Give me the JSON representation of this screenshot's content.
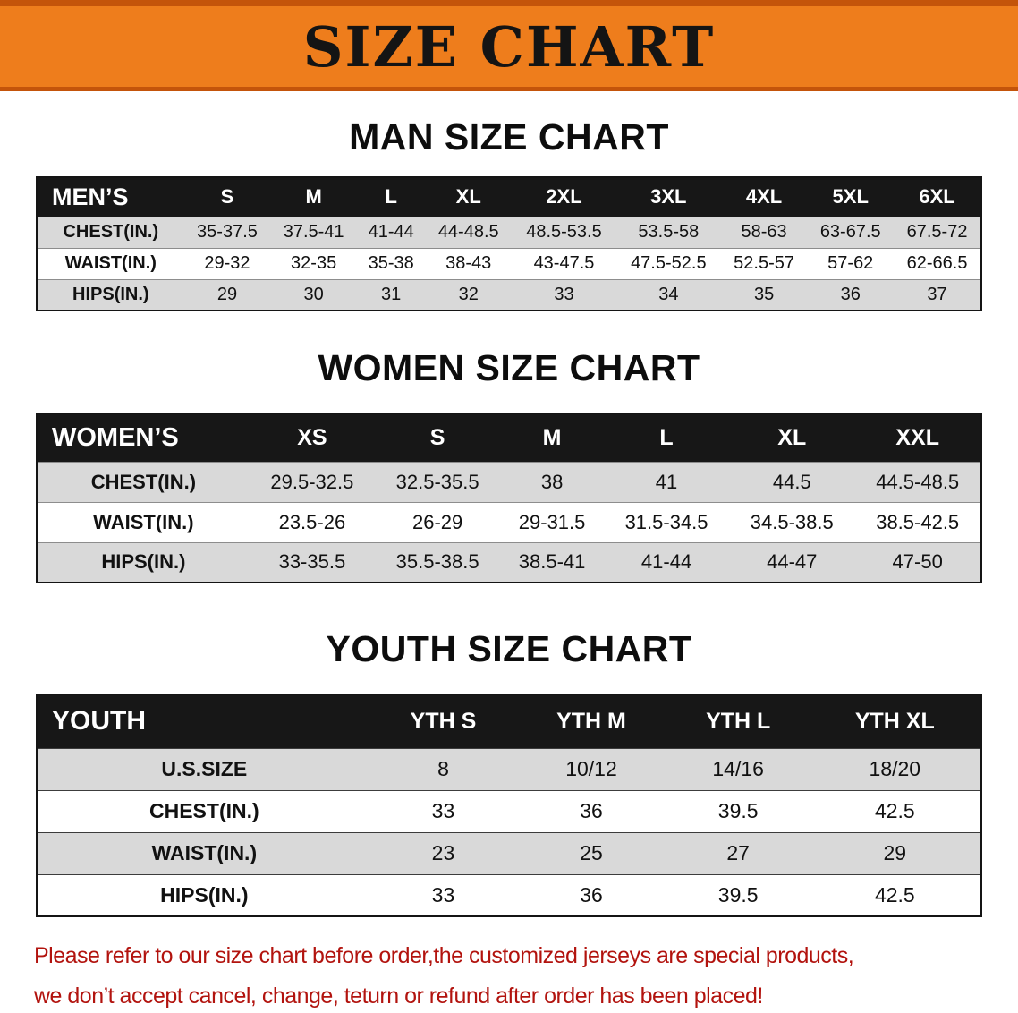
{
  "banner": {
    "title": "SIZE CHART",
    "bg_color": "#EE7D1C",
    "border_color": "#C4540A"
  },
  "men": {
    "heading": "MAN SIZE CHART",
    "table": {
      "header": [
        "MEN’S",
        "S",
        "M",
        "L",
        "XL",
        "2XL",
        "3XL",
        "4XL",
        "5XL",
        "6XL"
      ],
      "rows": [
        [
          "CHEST(IN.)",
          "35-37.5",
          "37.5-41",
          "41-44",
          "44-48.5",
          "48.5-53.5",
          "53.5-58",
          "58-63",
          "63-67.5",
          "67.5-72"
        ],
        [
          "WAIST(IN.)",
          "29-32",
          "32-35",
          "35-38",
          "38-43",
          "43-47.5",
          "47.5-52.5",
          "52.5-57",
          "57-62",
          "62-66.5"
        ],
        [
          "HIPS(IN.)",
          "29",
          "30",
          "31",
          "32",
          "33",
          "34",
          "35",
          "36",
          "37"
        ]
      ]
    }
  },
  "women": {
    "heading": "WOMEN SIZE CHART",
    "table": {
      "header": [
        "WOMEN’S",
        "XS",
        "S",
        "M",
        "L",
        "XL",
        "XXL"
      ],
      "rows": [
        [
          "CHEST(IN.)",
          "29.5-32.5",
          "32.5-35.5",
          "38",
          "41",
          "44.5",
          "44.5-48.5"
        ],
        [
          "WAIST(IN.)",
          "23.5-26",
          "26-29",
          "29-31.5",
          "31.5-34.5",
          "34.5-38.5",
          "38.5-42.5"
        ],
        [
          "HIPS(IN.)",
          "33-35.5",
          "35.5-38.5",
          "38.5-41",
          "41-44",
          "44-47",
          "47-50"
        ]
      ]
    }
  },
  "youth": {
    "heading": "YOUTH SIZE CHART",
    "table": {
      "header": [
        "YOUTH",
        "YTH S",
        "YTH M",
        "YTH L",
        "YTH XL"
      ],
      "rows": [
        [
          "U.S.SIZE",
          "8",
          "10/12",
          "14/16",
          "18/20"
        ],
        [
          "CHEST(IN.)",
          "33",
          "36",
          "39.5",
          "42.5"
        ],
        [
          "WAIST(IN.)",
          "23",
          "25",
          "27",
          "29"
        ],
        [
          "HIPS(IN.)",
          "33",
          "36",
          "39.5",
          "42.5"
        ]
      ]
    }
  },
  "disclaimer": {
    "line1": "Please refer to our size chart before order,the customized jerseys are special products,",
    "line2": "we don’t accept cancel, change, teturn or refund after order has been placed!",
    "text_color": "#B2130E"
  },
  "colors": {
    "table_header_bg": "#171717",
    "shaded_row_bg": "#D9D9D9",
    "plain_row_bg": "#FFFFFF"
  }
}
